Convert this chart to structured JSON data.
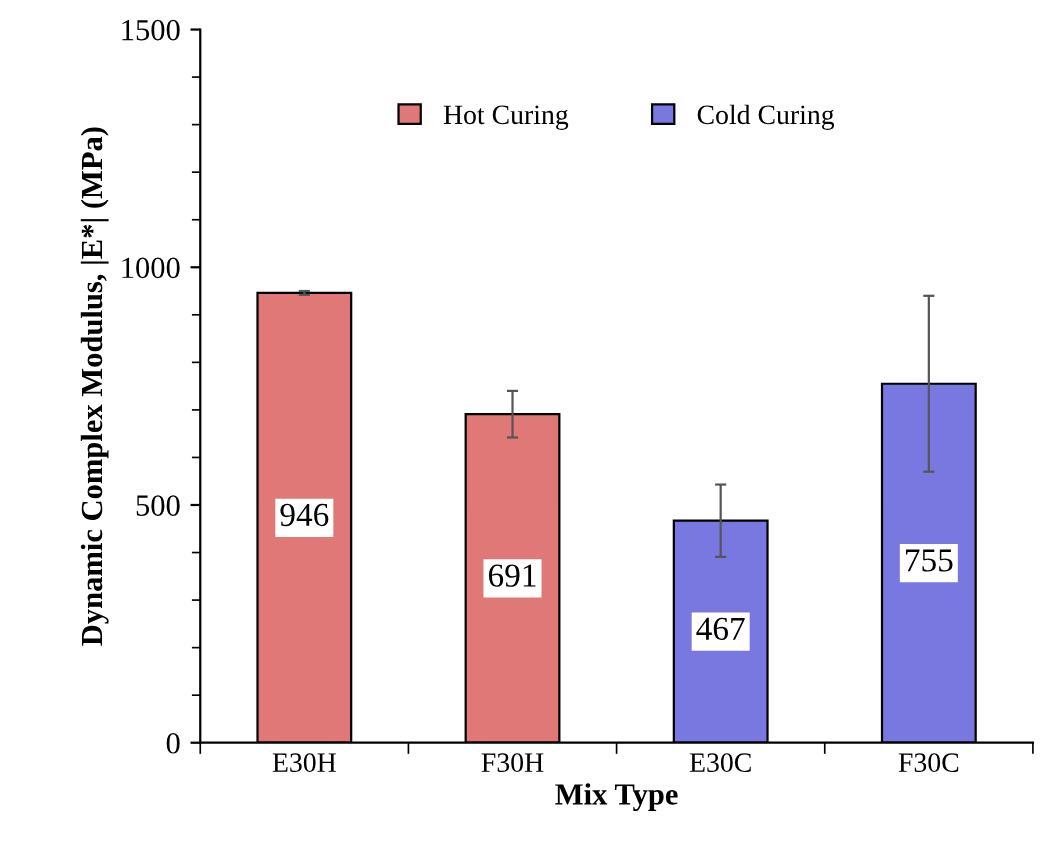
{
  "chart_data": {
    "type": "bar",
    "xlabel": "Mix Type",
    "ylabel": "Dynamic Complex Modulus, |E*| (MPa)",
    "categories": [
      "E30H",
      "F30H",
      "E30C",
      "F30C"
    ],
    "series": [
      {
        "name": "Hot Curing",
        "color": "#e07878",
        "values": [
          946,
          691,
          null,
          null
        ],
        "errors": [
          4,
          49,
          null,
          null
        ]
      },
      {
        "name": "Cold Curing",
        "color": "#7878e0",
        "values": [
          null,
          null,
          467,
          755
        ],
        "errors": [
          null,
          null,
          76,
          185
        ]
      }
    ],
    "ylim": [
      0,
      1500
    ],
    "yticks": [
      0,
      500,
      1000,
      1500
    ],
    "data_labels": true,
    "legend": "top",
    "grid": false
  }
}
